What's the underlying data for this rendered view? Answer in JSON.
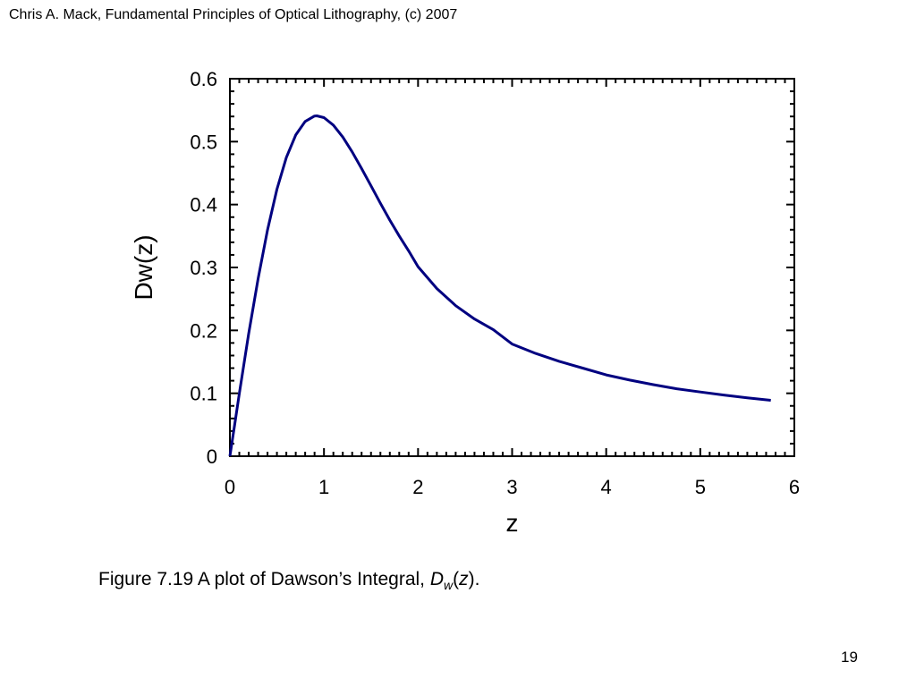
{
  "header": {
    "text": "Chris A. Mack, Fundamental Principles of Optical Lithography, (c) 2007"
  },
  "caption": {
    "prefix": "Figure 7.19  A plot of Dawson’s Integral, ",
    "symbol": "D",
    "subscript": "w",
    "open": "(",
    "arg": "z",
    "close": ")."
  },
  "page_number": "19",
  "chart_data": {
    "type": "line",
    "title": "",
    "xlabel": "z",
    "ylabel": "Dw(z)",
    "xlim": [
      0,
      6
    ],
    "ylim": [
      0,
      0.6
    ],
    "x_ticks": [
      "0",
      "1",
      "2",
      "3",
      "4",
      "5",
      "6"
    ],
    "y_ticks": [
      "0",
      "0.1",
      "0.2",
      "0.3",
      "0.4",
      "0.5",
      "0.6"
    ],
    "grid": false,
    "line_color": "#000080",
    "series": [
      {
        "x": [
          0,
          0.05,
          0.1,
          0.2,
          0.3,
          0.4,
          0.5,
          0.6,
          0.7,
          0.8,
          0.9,
          0.924,
          1.0,
          1.1,
          1.2,
          1.3,
          1.4,
          1.5,
          1.6,
          1.7,
          1.8,
          1.9,
          2.0,
          2.2,
          2.4,
          2.6,
          2.8,
          3.0,
          3.25,
          3.5,
          3.75,
          4.0,
          4.25,
          4.5,
          4.75,
          5.0,
          5.25,
          5.5,
          5.75
        ],
        "y": [
          0,
          0.0498,
          0.0993,
          0.1948,
          0.2826,
          0.3599,
          0.4244,
          0.4748,
          0.5105,
          0.5321,
          0.5407,
          0.541,
          0.5381,
          0.5262,
          0.5073,
          0.4837,
          0.4572,
          0.4296,
          0.402,
          0.3752,
          0.35,
          0.3265,
          0.3013,
          0.2664,
          0.2393,
          0.2181,
          0.201,
          0.1783,
          0.1633,
          0.1509,
          0.1401,
          0.1293,
          0.121,
          0.1137,
          0.1072,
          0.1021,
          0.0972,
          0.0928,
          0.0889
        ]
      }
    ]
  }
}
